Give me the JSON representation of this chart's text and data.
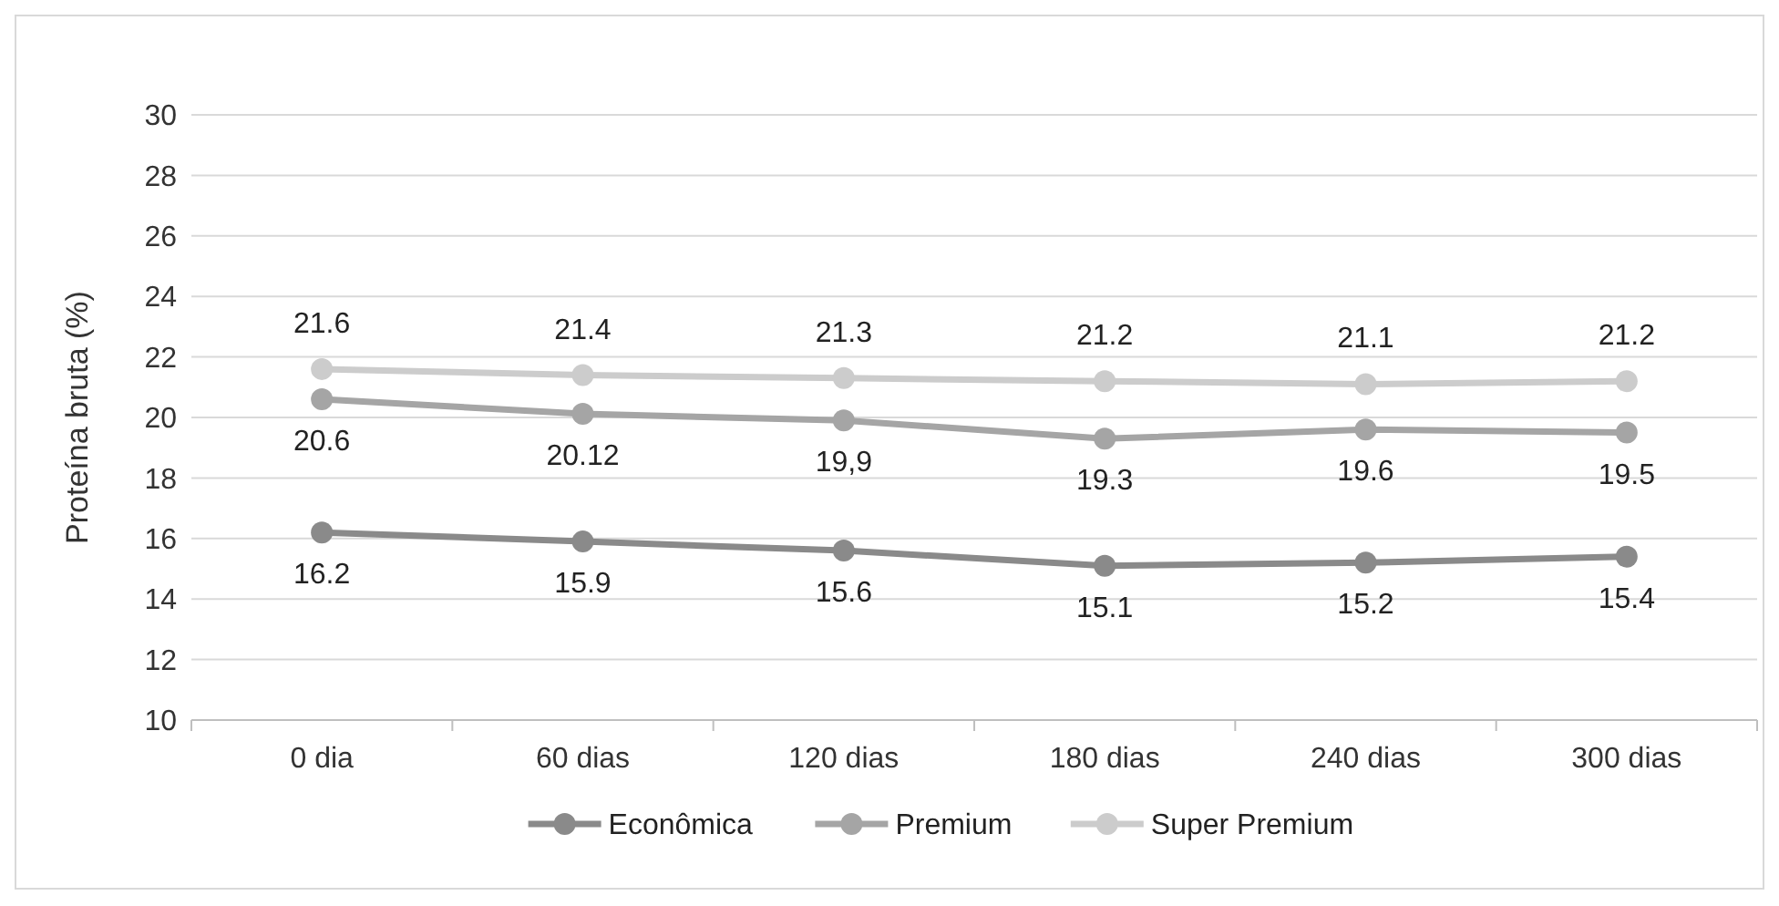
{
  "chart_data": {
    "type": "line",
    "ylabel": "Proteína bruta (%)",
    "categories": [
      "0 dia",
      "60 dias",
      "120 dias",
      "180 dias",
      "240 dias",
      "300 dias"
    ],
    "ylim": [
      10,
      30
    ],
    "yticks": [
      10,
      12,
      14,
      16,
      18,
      20,
      22,
      24,
      26,
      28,
      30
    ],
    "grid": "y",
    "legend": "bottom",
    "marker": "circle",
    "line_style": "solid",
    "series": [
      {
        "name": "Econômica",
        "color": "#8a8a8a",
        "values": [
          16.2,
          15.9,
          15.6,
          15.1,
          15.2,
          15.4
        ],
        "value_labels": [
          "16.2",
          "15.9",
          "15.6",
          "15.1",
          "15.2",
          "15.4"
        ]
      },
      {
        "name": "Premium",
        "color": "#a5a5a5",
        "values": [
          20.6,
          20.12,
          19.9,
          19.3,
          19.6,
          19.5
        ],
        "value_labels": [
          "20.6",
          "20.12",
          "19,9",
          "19.3",
          "19.6",
          "19.5"
        ]
      },
      {
        "name": "Super Premium",
        "color": "#cccccc",
        "values": [
          21.6,
          21.4,
          21.3,
          21.2,
          21.1,
          21.2
        ],
        "value_labels": [
          "21.6",
          "21.4",
          "21.3",
          "21.2",
          "21.1",
          "21.2"
        ]
      }
    ]
  }
}
